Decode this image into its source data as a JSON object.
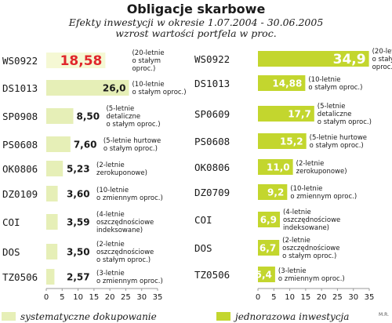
{
  "title": "Obligacje skarbowe",
  "subtitle_line1": "Efekty inwestycji  w okresie 1.07.2004 - 30.06.2005",
  "subtitle_line2": "wzrost wartości portfela w proc.",
  "credit": "M.R.",
  "colors": {
    "left_bar": "#e6efb7",
    "left_highlight_bar": "#f5f8d4",
    "highlight_text": "#e0262b",
    "right_bar": "#c3d62e",
    "axis": "#999999",
    "text": "#1a1a1a"
  },
  "chart_data": [
    {
      "type": "bar",
      "orientation": "horizontal",
      "legend": "systematyczne dokupowanie",
      "xlim": [
        0,
        35
      ],
      "xticks": [
        0,
        5,
        10,
        15,
        20,
        25,
        30,
        35
      ],
      "highlight_index": 0,
      "categories": [
        "WS0922",
        "DS1013",
        "SP0908",
        "PS0608",
        "OK0806",
        "DZ0109",
        "COI",
        "DOS",
        "TZ0506"
      ],
      "values": [
        18.58,
        26.0,
        8.5,
        7.6,
        5.23,
        3.6,
        3.59,
        3.5,
        2.57
      ],
      "value_labels": [
        "18,58",
        "26,0",
        "8,50",
        "7,60",
        "5,23",
        "3,60",
        "3,59",
        "3,50",
        "2,57"
      ],
      "descriptions": [
        [
          "(20-letnie",
          "o stałym",
          "oproc.)"
        ],
        [
          "(10-letnie",
          "o stałym oproc.)"
        ],
        [
          "(5-letnie",
          "detaliczne",
          "o stałym oproc.)"
        ],
        [
          "(5-letnie hurtowe",
          "o stałym oproc.)"
        ],
        [
          "(2-letnie",
          "zerokuponowe)"
        ],
        [
          "(10-letnie",
          "o zmiennym oproc.)"
        ],
        [
          "(4-letnie",
          "oszczędnościowe",
          "indeksowane)"
        ],
        [
          "(2-letnie",
          "oszczędnościowe",
          "o stałym oproc.)"
        ],
        [
          "(3-letnie",
          "o zmiennym oproc.)"
        ]
      ]
    },
    {
      "type": "bar",
      "orientation": "horizontal",
      "legend": "jednorazowa inwestycja",
      "xlim": [
        0,
        35
      ],
      "xticks": [
        0,
        5,
        10,
        15,
        20,
        25,
        30,
        35
      ],
      "categories": [
        "WS0922",
        "DS1013",
        "SP0609",
        "PS0608",
        "OK0806",
        "DZ0709",
        "COI",
        "DOS",
        "TZ0506"
      ],
      "values": [
        34.9,
        14.88,
        17.7,
        15.2,
        11.0,
        9.2,
        6.9,
        6.7,
        5.4
      ],
      "value_labels": [
        "34,9",
        "14,88",
        "17,7",
        "15,2",
        "11,0",
        "9,2",
        "6,9",
        "6,7",
        "5,4"
      ],
      "descriptions": [
        [
          "(20-letnie",
          "o stałym",
          "oproc.)"
        ],
        [
          "(10-letnie",
          "o stałym oproc.)"
        ],
        [
          "(5-letnie",
          "detaliczne",
          "o stałym oproc.)"
        ],
        [
          "(5-letnie hurtowe",
          "o stałym oproc.)"
        ],
        [
          "(2-letnie",
          "zerokuponowe)"
        ],
        [
          "(10-letnie",
          "o zmiennym oproc.)"
        ],
        [
          "(4-letnie",
          "oszczędnościowe",
          "indeksowane)"
        ],
        [
          "(2-letnie",
          "oszczędnościowe",
          "o stałym oproc.)"
        ],
        [
          "(3-letnie",
          "o zmiennym oproc.)"
        ]
      ]
    }
  ]
}
